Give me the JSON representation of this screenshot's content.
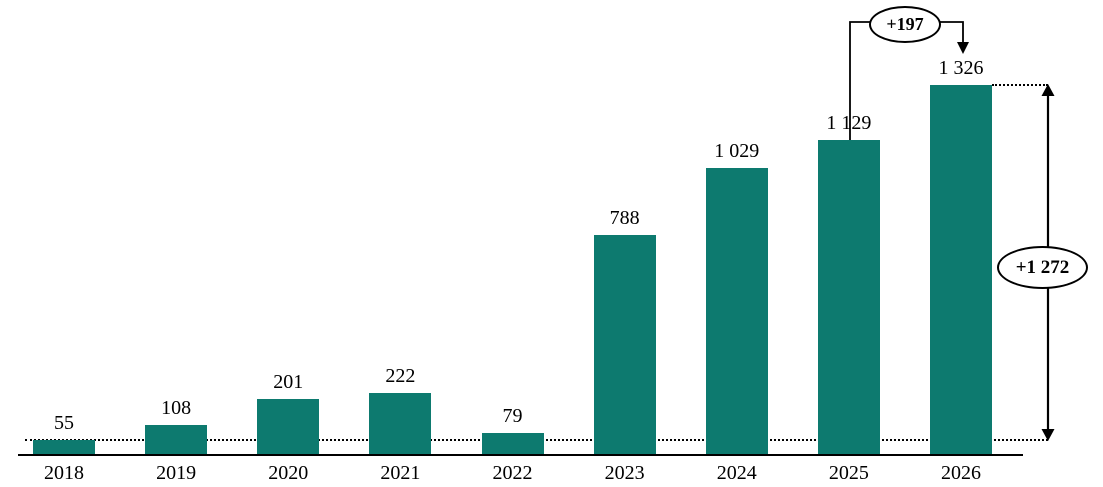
{
  "chart_data": {
    "type": "bar",
    "title": "",
    "xlabel": "",
    "ylabel": "",
    "categories": [
      "2018",
      "2019",
      "2020",
      "2021",
      "2022",
      "2023",
      "2024",
      "2025",
      "2026"
    ],
    "values": [
      55,
      108,
      201,
      222,
      79,
      788,
      1029,
      1129,
      1326
    ],
    "value_labels": [
      "55",
      "108",
      "201",
      "222",
      "79",
      "788",
      "1 029",
      "1 129",
      "1 326"
    ],
    "ylim": [
      0,
      1326
    ],
    "grid": false,
    "legend": false,
    "axes_visible": {
      "x": true,
      "y": false
    },
    "bar_color": "#0d7a6f",
    "label_color": "#000000",
    "annotations": [
      {
        "id": "yoy-change",
        "label": "+197",
        "shape": "ellipse",
        "from_category": "2025",
        "to_category": "2026",
        "meaning": "increase from 1 129 in 2025 to 1 326 in 2026"
      },
      {
        "id": "total-change",
        "label": "+1 272",
        "shape": "ellipse",
        "from_value": 55,
        "to_value": 1326,
        "meaning": "total increase from 2018 level (55) to 2026 level (1 326), shown with double-headed vertical arrow"
      }
    ],
    "reference_lines": [
      {
        "style": "dotted",
        "level": 55,
        "note": "horizontal dotted line at 2018 bar top extending to total-change arrow"
      },
      {
        "style": "dotted",
        "level": 1326,
        "note": "horizontal dotted line at 2026 bar top extending to total-change arrow"
      }
    ]
  }
}
